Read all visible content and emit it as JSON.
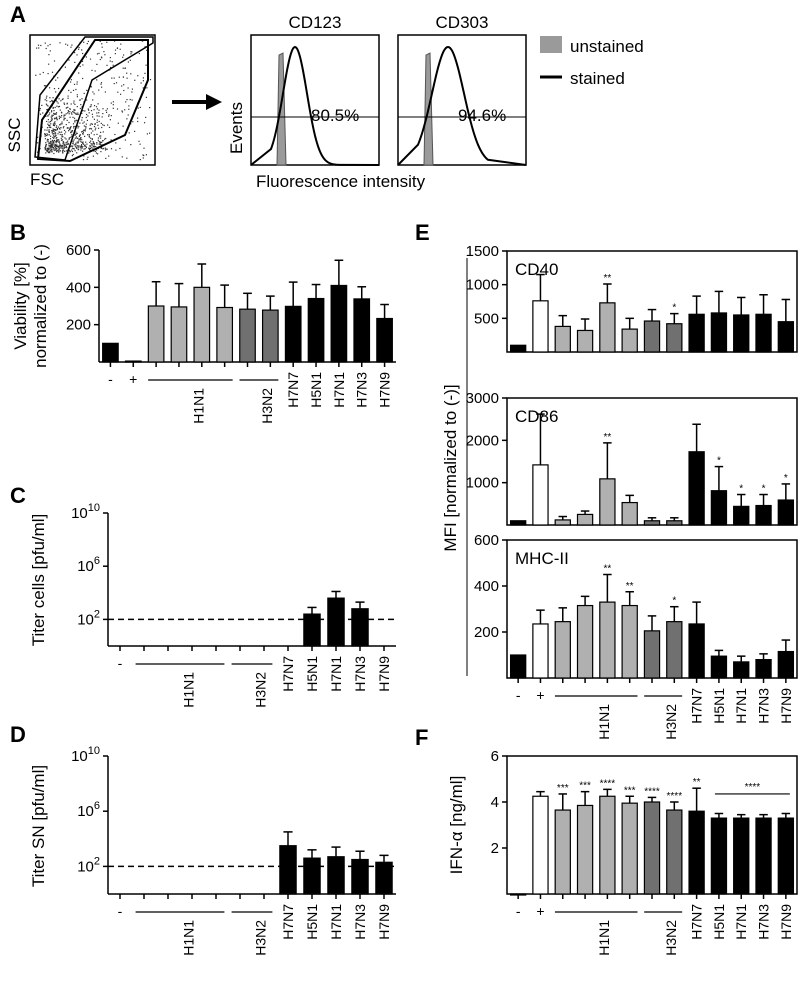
{
  "colors": {
    "neg": "#000000",
    "pos": "#ffffff",
    "h1n1": "#b0b0b0",
    "h3n2": "#707070",
    "h7": "#000000",
    "unstained": "#9a9a9a"
  },
  "panel_a": {
    "letter": "A",
    "scatter": {
      "xlabel": "FSC",
      "ylabel": "SSC"
    },
    "hist_ylabel": "Events",
    "hist_xlabel": "Fluorescence intensity",
    "legend": [
      {
        "label": "unstained",
        "style": "fill",
        "color": "#9a9a9a"
      },
      {
        "label": "stained",
        "style": "line",
        "color": "#000000"
      }
    ],
    "histograms": [
      {
        "title": "CD123",
        "percent": "80.5%"
      },
      {
        "title": "CD303",
        "percent": "94.6%"
      }
    ]
  },
  "chart_data": [
    {
      "id": "B",
      "panel_letter": "B",
      "type": "bar",
      "ylabel_lines": [
        "Viability [%]",
        "normalized to (-)"
      ],
      "ylim": [
        0,
        600
      ],
      "yticks": [
        200,
        400,
        600
      ],
      "ytick_labels": [
        "200",
        "400",
        "600"
      ],
      "scale": "linear",
      "categories": [
        "-",
        "+",
        "H1N1",
        "H1N1",
        "H1N1",
        "H1N1",
        "H3N2",
        "H3N2",
        "H7N7",
        "H5N1",
        "H7N1",
        "H7N3",
        "H7N9"
      ],
      "colors": [
        "neg",
        "pos",
        "h1n1",
        "h1n1",
        "h1n1",
        "h1n1",
        "h3n2",
        "h3n2",
        "h7",
        "h7",
        "h7",
        "h7",
        "h7"
      ],
      "values": [
        100,
        5,
        300,
        295,
        400,
        292,
        283,
        278,
        298,
        340,
        410,
        338,
        233
      ],
      "errors": [
        0,
        0,
        130,
        125,
        125,
        120,
        85,
        75,
        130,
        75,
        135,
        65,
        75
      ],
      "group_labels": {
        "labels": [
          "-",
          "+",
          "H1N1",
          "H3N2",
          "H7N7",
          "H5N1",
          "H7N1",
          "H7N3",
          "H7N9"
        ]
      }
    },
    {
      "id": "C",
      "panel_letter": "C",
      "type": "bar",
      "ylabel_lines": [
        "Titer cells [pfu/ml]"
      ],
      "scale": "log",
      "ylim_log10": [
        0,
        10
      ],
      "yticks_log10": [
        2,
        6,
        10
      ],
      "ytick_base": "10",
      "ytick_exps": [
        "2",
        "6",
        "10"
      ],
      "detection_limit_log10": 2,
      "categories": [
        "-",
        "H1N1",
        "H1N1",
        "H1N1",
        "H1N1",
        "H3N2",
        "H3N2",
        "H7N7",
        "H5N1",
        "H7N1",
        "H7N3",
        "H7N9"
      ],
      "colors": [
        "neg",
        "h1n1",
        "h1n1",
        "h1n1",
        "h1n1",
        "h3n2",
        "h3n2",
        "h7",
        "h7",
        "h7",
        "h7",
        "h7"
      ],
      "values_log10": [
        null,
        null,
        null,
        null,
        null,
        null,
        null,
        null,
        2.4,
        3.6,
        2.8,
        null
      ],
      "errors_log10": [
        0,
        0,
        0,
        0,
        0,
        0,
        0,
        0,
        0.5,
        0.5,
        0.5,
        0
      ],
      "group_labels": {
        "labels": [
          "-",
          "H1N1",
          "H3N2",
          "H7N7",
          "H5N1",
          "H7N1",
          "H7N3",
          "H7N9"
        ]
      }
    },
    {
      "id": "D",
      "panel_letter": "D",
      "type": "bar",
      "ylabel_lines": [
        "Titer SN [pfu/ml]"
      ],
      "scale": "log",
      "ylim_log10": [
        0,
        10
      ],
      "yticks_log10": [
        2,
        6,
        10
      ],
      "ytick_base": "10",
      "ytick_exps": [
        "2",
        "6",
        "10"
      ],
      "detection_limit_log10": 2,
      "categories": [
        "-",
        "H1N1",
        "H1N1",
        "H1N1",
        "H1N1",
        "H3N2",
        "H3N2",
        "H7N7",
        "H5N1",
        "H7N1",
        "H7N3",
        "H7N9"
      ],
      "colors": [
        "neg",
        "h1n1",
        "h1n1",
        "h1n1",
        "h1n1",
        "h3n2",
        "h3n2",
        "h7",
        "h7",
        "h7",
        "h7",
        "h7"
      ],
      "values_log10": [
        null,
        null,
        null,
        null,
        null,
        null,
        null,
        3.5,
        2.6,
        2.7,
        2.5,
        2.3
      ],
      "errors_log10": [
        0,
        0,
        0,
        0,
        0,
        0,
        0,
        1.0,
        0.6,
        0.7,
        0.6,
        0.5
      ],
      "group_labels": {
        "labels": [
          "-",
          "H1N1",
          "H3N2",
          "H7N7",
          "H5N1",
          "H7N1",
          "H7N3",
          "H7N9"
        ]
      }
    },
    {
      "id": "E1",
      "panel_letter": "E",
      "type": "bar",
      "shared_ylabel": "MFI [normalized to (-)]",
      "inset_label": "CD40",
      "ylim": [
        0,
        1500
      ],
      "yticks": [
        500,
        1000,
        1500
      ],
      "ytick_labels": [
        "500",
        "1000",
        "1500"
      ],
      "scale": "linear",
      "categories": [
        "-",
        "+",
        "H1N1",
        "H1N1",
        "H1N1",
        "H1N1",
        "H3N2",
        "H3N2",
        "H7N7",
        "H5N1",
        "H7N1",
        "H7N3",
        "H7N9"
      ],
      "colors": [
        "neg",
        "pos",
        "h1n1",
        "h1n1",
        "h1n1",
        "h1n1",
        "h3n2",
        "h3n2",
        "h7",
        "h7",
        "h7",
        "h7",
        "h7"
      ],
      "values": [
        100,
        760,
        380,
        320,
        730,
        340,
        460,
        420,
        560,
        580,
        550,
        560,
        450
      ],
      "errors": [
        0,
        390,
        160,
        170,
        280,
        160,
        170,
        150,
        270,
        320,
        260,
        290,
        330
      ],
      "sig": [
        "",
        "",
        "",
        "",
        "**",
        "",
        "",
        "*",
        "",
        "",
        "",
        "",
        ""
      ]
    },
    {
      "id": "E2",
      "type": "bar",
      "inset_label": "CD86",
      "ylim": [
        0,
        3000
      ],
      "yticks": [
        1000,
        2000,
        3000
      ],
      "ytick_labels": [
        "1000",
        "2000",
        "3000"
      ],
      "scale": "linear",
      "categories": [
        "-",
        "+",
        "H1N1",
        "H1N1",
        "H1N1",
        "H1N1",
        "H3N2",
        "H3N2",
        "H7N7",
        "H5N1",
        "H7N1",
        "H7N3",
        "H7N9"
      ],
      "colors": [
        "neg",
        "pos",
        "h1n1",
        "h1n1",
        "h1n1",
        "h1n1",
        "h3n2",
        "h3n2",
        "h7",
        "h7",
        "h7",
        "h7",
        "h7"
      ],
      "values": [
        100,
        1420,
        120,
        250,
        1090,
        530,
        100,
        100,
        1730,
        810,
        440,
        460,
        590
      ],
      "errors": [
        0,
        1200,
        80,
        80,
        850,
        170,
        70,
        70,
        650,
        570,
        280,
        260,
        380
      ],
      "sig": [
        "",
        "",
        "",
        "",
        "**",
        "",
        "",
        "",
        "",
        "*",
        "*",
        "*",
        "*"
      ]
    },
    {
      "id": "E3",
      "type": "bar",
      "inset_label": "MHC-II",
      "ylim": [
        0,
        600
      ],
      "yticks": [
        200,
        400,
        600
      ],
      "ytick_labels": [
        "200",
        "400",
        "600"
      ],
      "scale": "linear",
      "categories": [
        "-",
        "+",
        "H1N1",
        "H1N1",
        "H1N1",
        "H1N1",
        "H3N2",
        "H3N2",
        "H7N7",
        "H5N1",
        "H7N1",
        "H7N3",
        "H7N9"
      ],
      "colors": [
        "neg",
        "pos",
        "h1n1",
        "h1n1",
        "h1n1",
        "h1n1",
        "h3n2",
        "h3n2",
        "h7",
        "h7",
        "h7",
        "h7",
        "h7"
      ],
      "values": [
        100,
        235,
        245,
        315,
        330,
        315,
        205,
        245,
        235,
        95,
        70,
        80,
        115
      ],
      "errors": [
        0,
        60,
        60,
        40,
        120,
        60,
        65,
        65,
        95,
        25,
        25,
        25,
        50
      ],
      "sig": [
        "",
        "",
        "",
        "",
        "**",
        "**",
        "",
        "*",
        "",
        "",
        "",
        "",
        ""
      ],
      "group_labels": {
        "labels": [
          "-",
          "+",
          "H1N1",
          "H3N2",
          "H7N7",
          "H5N1",
          "H7N1",
          "H7N3",
          "H7N9"
        ]
      }
    },
    {
      "id": "F",
      "panel_letter": "F",
      "type": "bar",
      "ylabel_lines": [
        "IFN-α [ng/ml]"
      ],
      "ylim": [
        0,
        6
      ],
      "yticks": [
        2,
        4,
        6
      ],
      "ytick_labels": [
        "2",
        "4",
        "6"
      ],
      "scale": "linear",
      "categories": [
        "-",
        "+",
        "H1N1",
        "H1N1",
        "H1N1",
        "H1N1",
        "H3N2",
        "H3N2",
        "H7N7",
        "H5N1",
        "H7N1",
        "H7N3",
        "H7N9"
      ],
      "colors": [
        "neg",
        "pos",
        "h1n1",
        "h1n1",
        "h1n1",
        "h1n1",
        "h3n2",
        "h3n2",
        "h7",
        "h7",
        "h7",
        "h7",
        "h7"
      ],
      "values": [
        0,
        4.25,
        3.65,
        3.85,
        4.25,
        3.95,
        4.0,
        3.65,
        3.6,
        3.3,
        3.3,
        3.3,
        3.3
      ],
      "errors": [
        0,
        0.2,
        0.7,
        0.6,
        0.3,
        0.3,
        0.2,
        0.35,
        1.0,
        0.2,
        0.15,
        0.15,
        0.2
      ],
      "sig": [
        "",
        "",
        "***",
        "***",
        "****",
        "***",
        "****",
        "****",
        "**",
        "",
        "",
        "",
        ""
      ],
      "bracket_sig": "****",
      "group_labels": {
        "labels": [
          "-",
          "+",
          "H1N1",
          "H3N2",
          "H7N7",
          "H5N1",
          "H7N1",
          "H7N3",
          "H7N9"
        ]
      }
    }
  ]
}
